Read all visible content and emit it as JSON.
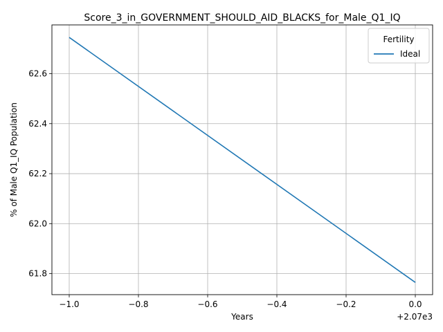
{
  "chart_data": {
    "type": "line",
    "title": "Score_3_in_GOVERNMENT_SHOULD_AID_BLACKS_for_Male_Q1_IQ",
    "xlabel": "Years",
    "ylabel": "% of Male Q1_IQ Population",
    "x_offset_label": "+2.07e3",
    "x_tick_labels": [
      "−1.0",
      "−0.8",
      "−0.6",
      "−0.4",
      "−0.2",
      "0.0"
    ],
    "x_ticks": [
      -1.0,
      -0.8,
      -0.6,
      -0.4,
      -0.2,
      0.0
    ],
    "y_tick_labels": [
      "61.8",
      "62.0",
      "62.2",
      "62.4",
      "62.6"
    ],
    "y_ticks": [
      61.8,
      62.0,
      62.2,
      62.4,
      62.6
    ],
    "xlim": [
      -1.05,
      0.05
    ],
    "ylim": [
      61.716,
      62.795
    ],
    "grid": true,
    "legend": {
      "title": "Fertility",
      "placement": "upper right"
    },
    "series": [
      {
        "name": "Ideal",
        "color": "#1f77b4",
        "x": [
          -1.0,
          0.0
        ],
        "y": [
          62.745,
          61.765
        ]
      }
    ]
  }
}
